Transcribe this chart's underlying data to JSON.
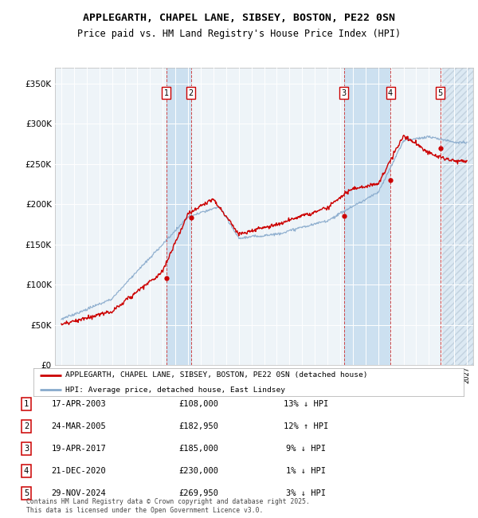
{
  "title": "APPLEGARTH, CHAPEL LANE, SIBSEY, BOSTON, PE22 0SN",
  "subtitle": "Price paid vs. HM Land Registry's House Price Index (HPI)",
  "transactions": [
    {
      "num": 1,
      "date": "17-APR-2003",
      "price": 108000,
      "pct": "13%",
      "dir": "↓",
      "year_x": 2003.29
    },
    {
      "num": 2,
      "date": "24-MAR-2005",
      "price": 182950,
      "pct": "12%",
      "dir": "↑",
      "year_x": 2005.23
    },
    {
      "num": 3,
      "date": "19-APR-2017",
      "price": 185000,
      "pct": "9%",
      "dir": "↓",
      "year_x": 2017.3
    },
    {
      "num": 4,
      "date": "21-DEC-2020",
      "price": 230000,
      "pct": "1%",
      "dir": "↓",
      "year_x": 2020.97
    },
    {
      "num": 5,
      "date": "29-NOV-2024",
      "price": 269950,
      "pct": "3%",
      "dir": "↓",
      "year_x": 2024.91
    }
  ],
  "price_color": "#cc0000",
  "hpi_color": "#88aacc",
  "plot_bg": "#eef4f8",
  "stripe_color": "#cce0f0",
  "footnote": "Contains HM Land Registry data © Crown copyright and database right 2025.\nThis data is licensed under the Open Government Licence v3.0.",
  "legend_label_price": "APPLEGARTH, CHAPEL LANE, SIBSEY, BOSTON, PE22 0SN (detached house)",
  "legend_label_hpi": "HPI: Average price, detached house, East Lindsey",
  "ylim": [
    0,
    370000
  ],
  "xlim_start": 1994.5,
  "xlim_end": 2027.5,
  "yticks": [
    0,
    50000,
    100000,
    150000,
    200000,
    250000,
    300000,
    350000
  ]
}
